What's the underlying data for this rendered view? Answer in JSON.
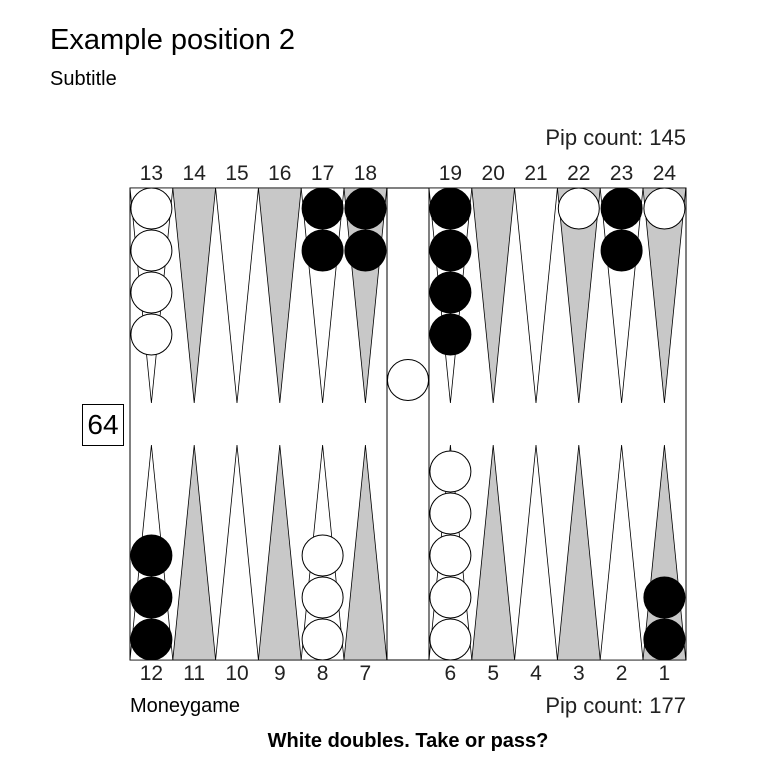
{
  "title": "Example position 2",
  "subtitle": "Subtitle",
  "pip_top": "Pip count: 145",
  "pip_bottom": "Pip count: 177",
  "game_type": "Moneygame",
  "question": "White doubles. Take or pass?",
  "cube_value": "64",
  "colors": {
    "light_point": "#ffffff",
    "dark_point": "#c8c8c8",
    "black_checker": "#000000",
    "white_checker": "#ffffff"
  },
  "top_labels": [
    "13",
    "14",
    "15",
    "16",
    "17",
    "18",
    "19",
    "20",
    "21",
    "22",
    "23",
    "24"
  ],
  "bottom_labels": [
    "12",
    "11",
    "10",
    "9",
    "8",
    "7",
    "6",
    "5",
    "4",
    "3",
    "2",
    "1"
  ],
  "points": {
    "1": {
      "color": "black",
      "count": 2
    },
    "6": {
      "color": "white",
      "count": 5
    },
    "8": {
      "color": "white",
      "count": 3
    },
    "12": {
      "color": "black",
      "count": 3
    },
    "13": {
      "color": "white",
      "count": 4
    },
    "17": {
      "color": "black",
      "count": 2
    },
    "18": {
      "color": "black",
      "count": 2
    },
    "19": {
      "color": "black",
      "count": 4
    },
    "22": {
      "color": "white",
      "count": 1
    },
    "23": {
      "color": "black",
      "count": 2
    },
    "24": {
      "color": "white",
      "count": 1
    }
  },
  "bar": {
    "white": 1,
    "black": 0
  }
}
